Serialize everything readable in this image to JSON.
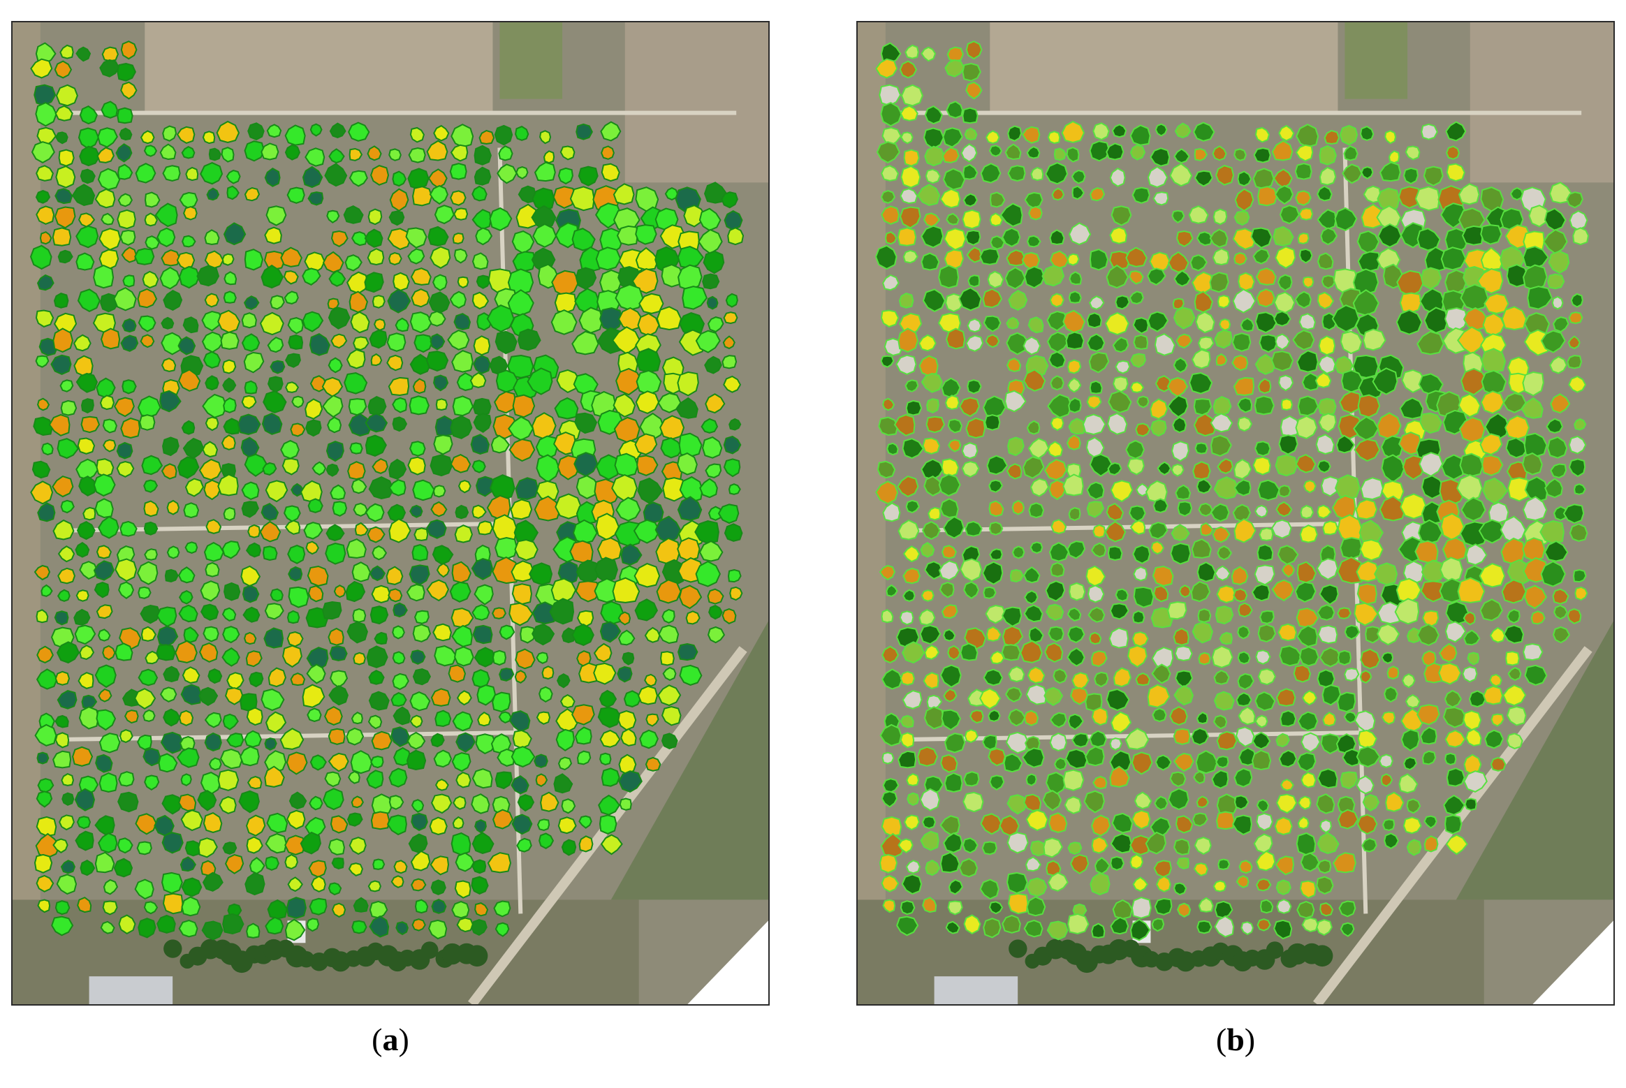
{
  "panels": [
    {
      "id": "a",
      "label": "a",
      "palette": [
        "#1fd11f",
        "#35e82a",
        "#55f035",
        "#7bf03a",
        "#0fa00f",
        "#1a8c1a",
        "#c8f020",
        "#e6ea12",
        "#f2c412",
        "#e8980e",
        "#1b6b4a"
      ],
      "outline": "#178a17"
    },
    {
      "id": "b",
      "label": "b",
      "palette": [
        "#1e7d14",
        "#2a8f1c",
        "#3d9a22",
        "#197010",
        "#5e9a2a",
        "#84c43a",
        "#bfe86a",
        "#e8ea20",
        "#f0c018",
        "#d8901a",
        "#b8741a",
        "#d6d2c8"
      ],
      "outline": "#58e040"
    }
  ]
}
